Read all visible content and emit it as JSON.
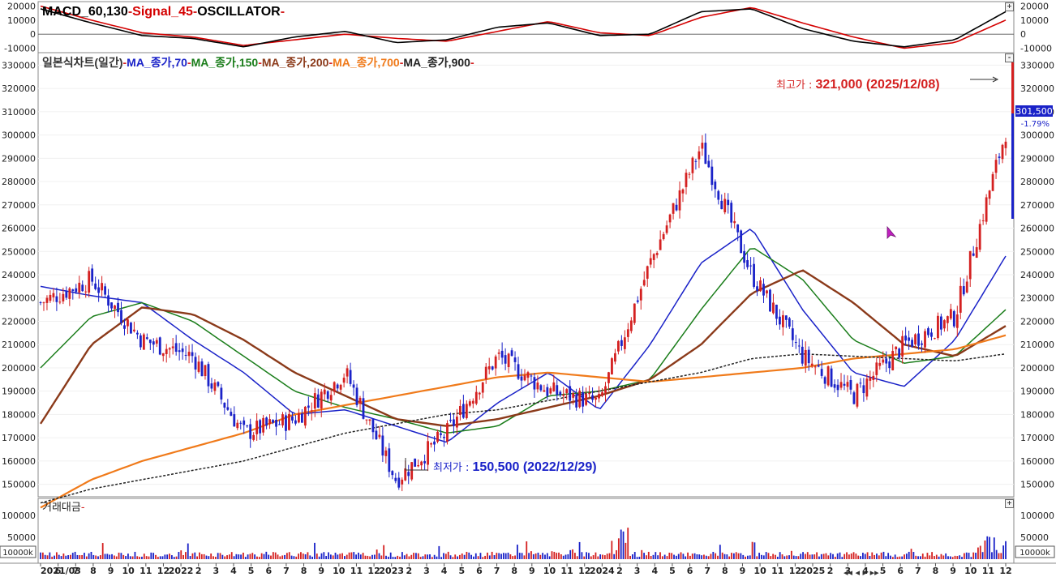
{
  "macd_panel": {
    "title_parts": [
      {
        "text": "MACD_60,130",
        "color": "#000000"
      },
      {
        "text": "Signal_45",
        "color": "#d40000"
      },
      {
        "text": "OSCILLATOR",
        "color": "#000000"
      }
    ],
    "y_ticks": [
      "20000",
      "10000",
      "0",
      "-10000"
    ]
  },
  "price_panel": {
    "title_parts": [
      {
        "text": "일본식차트(일간)",
        "color": "#333333"
      },
      {
        "text": "MA_종가,70",
        "color": "#1a22c8"
      },
      {
        "text": "MA_종가,150",
        "color": "#1a7d1a"
      },
      {
        "text": "MA_종가,200",
        "color": "#8b3a1a"
      },
      {
        "text": "MA_종가,700",
        "color": "#f07a1a"
      },
      {
        "text": "MA_종가,900",
        "color": "#222222"
      }
    ],
    "high_label": "최고가 : ",
    "high_value": "321,000 (2025/12/08)",
    "low_label": "최저가 : ",
    "low_value": "150,500 (2022/12/29)",
    "current_price": "301,500",
    "current_change": "-1.79%"
  },
  "volume_panel": {
    "title": "거래대금",
    "y_ticks": [
      "100000",
      "50000"
    ],
    "unit_label": "10000k"
  },
  "x_axis": {
    "labels": [
      "2021/03",
      "6",
      "7",
      "8",
      "9",
      "10",
      "11",
      "12",
      "2022",
      "2",
      "3",
      "4",
      "5",
      "6",
      "7",
      "8",
      "9",
      "10",
      "11",
      "12",
      "2023",
      "2",
      "3",
      "4",
      "5",
      "6",
      "7",
      "8",
      "9",
      "10",
      "11",
      "12",
      "2024",
      "2",
      "3",
      "4",
      "5",
      "6",
      "7",
      "8",
      "9",
      "10",
      "11",
      "12",
      "2025",
      "2",
      "3",
      "4",
      "5",
      "6",
      "7",
      "8",
      "9",
      "10",
      "11",
      "12"
    ]
  },
  "colors": {
    "up": "#d42020",
    "down": "#1a22c8",
    "ma70": "#1a22c8",
    "ma150": "#1a7d1a",
    "ma200": "#8b3a1a",
    "ma700": "#f07a1a",
    "ma900": "#222222",
    "macd": "#000000",
    "signal": "#d40000"
  },
  "chart_data": {
    "type": "line",
    "title": "일본식차트(일간)",
    "ylim": [
      145000,
      335000
    ],
    "y_ticks": [
      150000,
      160000,
      170000,
      180000,
      190000,
      200000,
      210000,
      220000,
      230000,
      240000,
      250000,
      260000,
      270000,
      280000,
      290000,
      300000,
      310000,
      320000,
      330000
    ],
    "x": [
      "2021/03",
      "2021/06",
      "2021/09",
      "2021/12",
      "2022/03",
      "2022/06",
      "2022/09",
      "2022/12",
      "2023/03",
      "2023/06",
      "2023/09",
      "2023/12",
      "2024/03",
      "2024/06",
      "2024/09",
      "2024/12",
      "2025/03",
      "2025/06",
      "2025/09",
      "2025/12"
    ],
    "series": [
      {
        "name": "일본식차트(일간)",
        "values": [
          228000,
          238000,
          212000,
          205000,
          172000,
          178000,
          198000,
          152000,
          172000,
          205000,
          190000,
          185000,
          245000,
          295000,
          240000,
          205000,
          188000,
          210000,
          222000,
          301500
        ]
      },
      {
        "name": "MA_종가,70",
        "values": [
          235000,
          231000,
          228000,
          212000,
          198000,
          180000,
          182000,
          175000,
          168000,
          185000,
          198000,
          182000,
          210000,
          245000,
          260000,
          225000,
          198000,
          192000,
          212000,
          248000
        ]
      },
      {
        "name": "MA_종가,150",
        "values": [
          200000,
          222000,
          228000,
          220000,
          205000,
          190000,
          183000,
          178000,
          172000,
          175000,
          188000,
          190000,
          195000,
          225000,
          252000,
          238000,
          212000,
          202000,
          205000,
          225000
        ]
      },
      {
        "name": "MA_종가,200",
        "values": [
          176000,
          210000,
          226000,
          223000,
          212000,
          198000,
          188000,
          178000,
          175000,
          178000,
          183000,
          188000,
          195000,
          210000,
          232000,
          242000,
          228000,
          210000,
          205000,
          218000
        ]
      },
      {
        "name": "MA_종가,700",
        "values": [
          140000,
          152000,
          160000,
          166000,
          172000,
          180000,
          184000,
          188000,
          192000,
          196000,
          198000,
          196000,
          194000,
          196000,
          198000,
          200000,
          204000,
          206000,
          208000,
          214000
        ]
      },
      {
        "name": "MA_종가,900",
        "values": [
          142000,
          148000,
          152000,
          156000,
          160000,
          166000,
          172000,
          176000,
          180000,
          182000,
          186000,
          190000,
          194000,
          198000,
          204000,
          206000,
          205000,
          204000,
          203000,
          206000
        ]
      }
    ]
  }
}
